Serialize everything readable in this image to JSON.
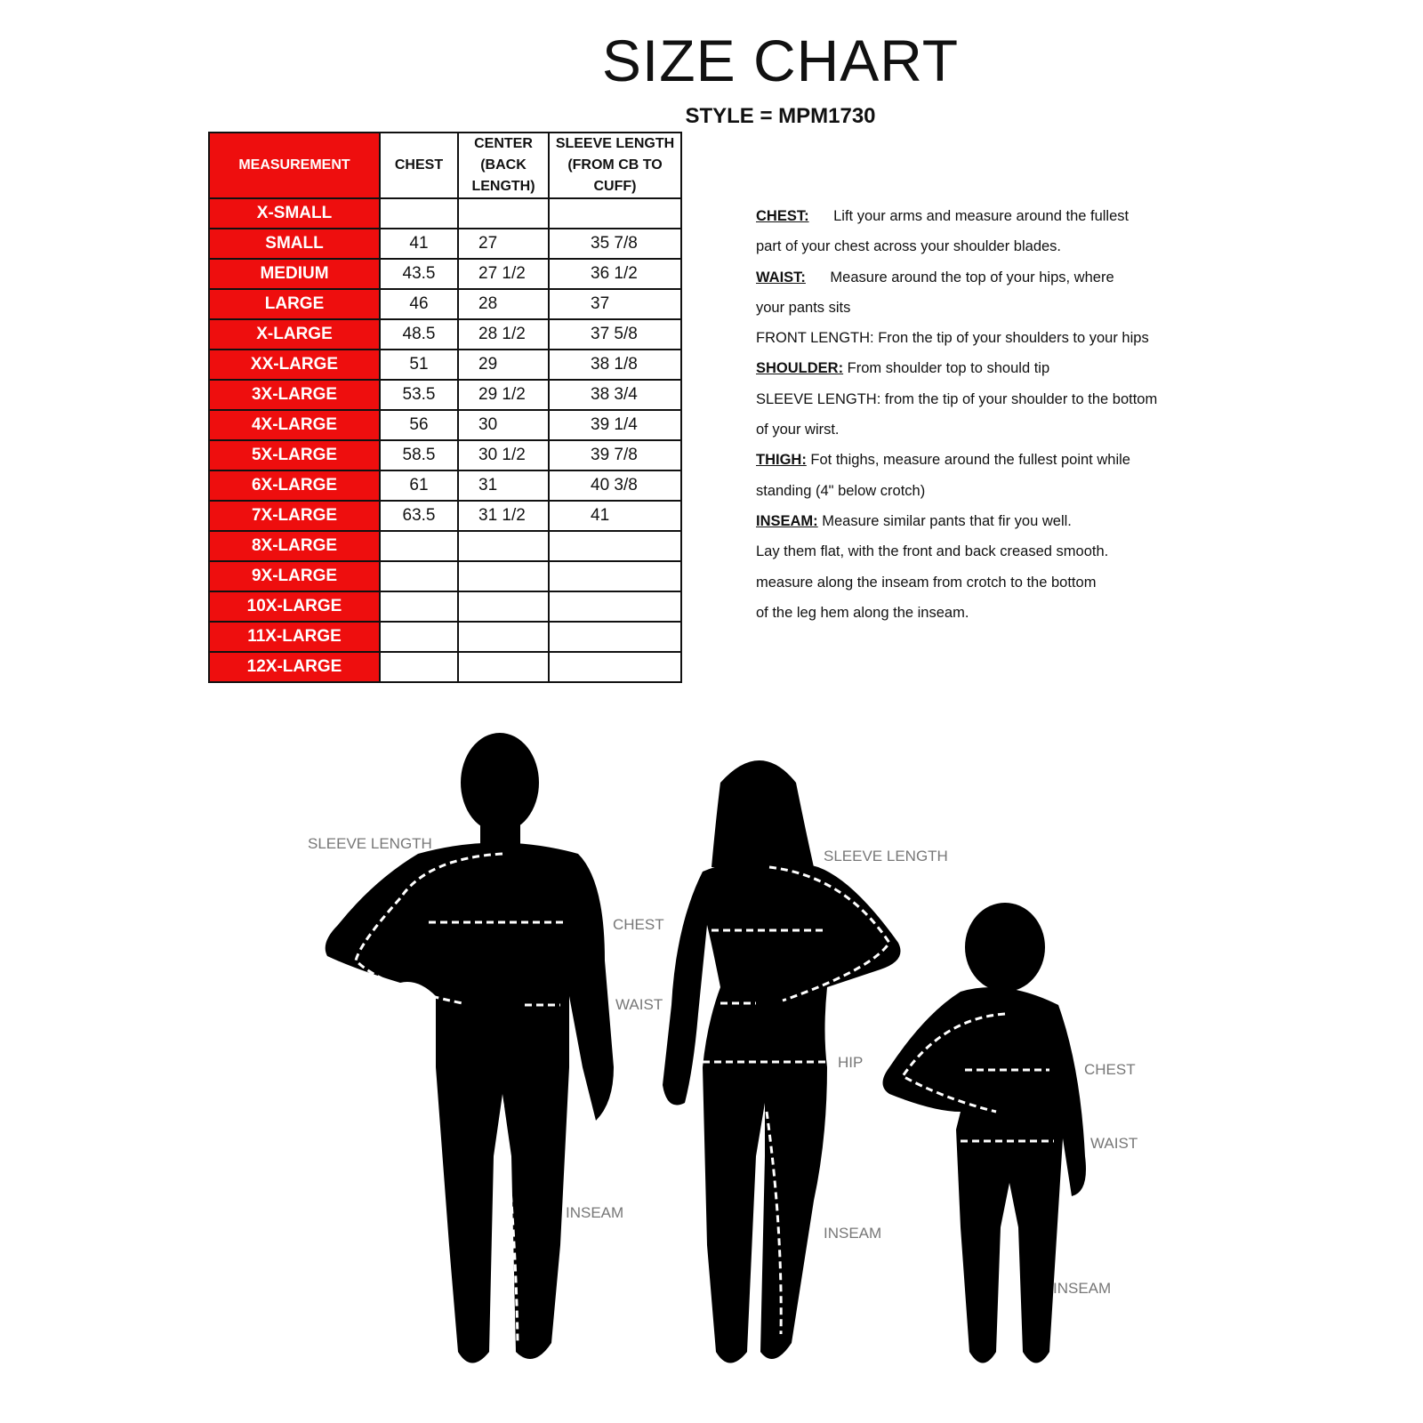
{
  "title": "SIZE CHART",
  "style_line": "STYLE = MPM1730",
  "table": {
    "headers": [
      "MEASUREMENT",
      "CHEST",
      "CENTER (BACK LENGTH)",
      "SLEEVE LENGTH (FROM CB TO CUFF)"
    ],
    "rows": [
      [
        "X-SMALL",
        "",
        "",
        ""
      ],
      [
        "SMALL",
        "41",
        "27",
        "35 7/8"
      ],
      [
        "MEDIUM",
        "43.5",
        "27 1/2",
        "36 1/2"
      ],
      [
        "LARGE",
        "46",
        "28",
        "37"
      ],
      [
        "X-LARGE",
        "48.5",
        "28 1/2",
        "37 5/8"
      ],
      [
        "XX-LARGE",
        "51",
        "29",
        "38 1/8"
      ],
      [
        "3X-LARGE",
        "53.5",
        "29 1/2",
        "38 3/4"
      ],
      [
        "4X-LARGE",
        "56",
        "30",
        "39 1/4"
      ],
      [
        "5X-LARGE",
        "58.5",
        "30 1/2",
        "39 7/8"
      ],
      [
        "6X-LARGE",
        "61",
        "31",
        "40 3/8"
      ],
      [
        "7X-LARGE",
        "63.5",
        "31 1/2",
        "41"
      ],
      [
        "8X-LARGE",
        "",
        "",
        ""
      ],
      [
        "9X-LARGE",
        "",
        "",
        ""
      ],
      [
        "10X-LARGE",
        "",
        "",
        ""
      ],
      [
        "11X-LARGE",
        "",
        "",
        ""
      ],
      [
        "12X-LARGE",
        "",
        "",
        ""
      ]
    ]
  },
  "notes": [
    {
      "key": "CHEST:",
      "text": "      Lift your arms and measure around the fullest"
    },
    {
      "key": "",
      "text": "part of your chest across your shoulder blades."
    },
    {
      "key": "WAIST:",
      "text": "      Measure around the top of  your hips, where"
    },
    {
      "key": "",
      "text": "your pants sits"
    },
    {
      "key": "",
      "text": "FRONT LENGTH: Fron the tip of your shoulders to your hips"
    },
    {
      "key": "SHOULDER:",
      "text": " From shoulder top to should tip"
    },
    {
      "key": "",
      "text": "SLEEVE LENGTH: from the tip of your shoulder to the bottom"
    },
    {
      "key": "",
      "text": "of your wirst."
    },
    {
      "key": "THIGH:",
      "text": " Fot thighs, measure around the fullest point while"
    },
    {
      "key": "",
      "text": "standing (4\" below crotch)"
    },
    {
      "key": "INSEAM:",
      "text": " Measure similar pants that fir you well."
    },
    {
      "key": "",
      "text": "Lay them flat, with the front and back creased smooth."
    },
    {
      "key": "",
      "text": "measure along the inseam from crotch to the bottom"
    },
    {
      "key": "",
      "text": "of the leg hem along the inseam."
    }
  ],
  "figure_labels": {
    "man_sleeve": "SLEEVE LENGTH",
    "man_chest": "CHEST",
    "man_waist": "WAIST",
    "man_inseam": "INSEAM",
    "woman_sleeve": "SLEEVE LENGTH",
    "woman_hip": "HIP",
    "woman_inseam": "INSEAM",
    "child_chest": "CHEST",
    "child_waist": "WAIST",
    "child_inseam": "INSEAM"
  },
  "colors": {
    "header_red": "#ee0e0e",
    "silhouette": "#000000",
    "label_gray": "#777777"
  }
}
